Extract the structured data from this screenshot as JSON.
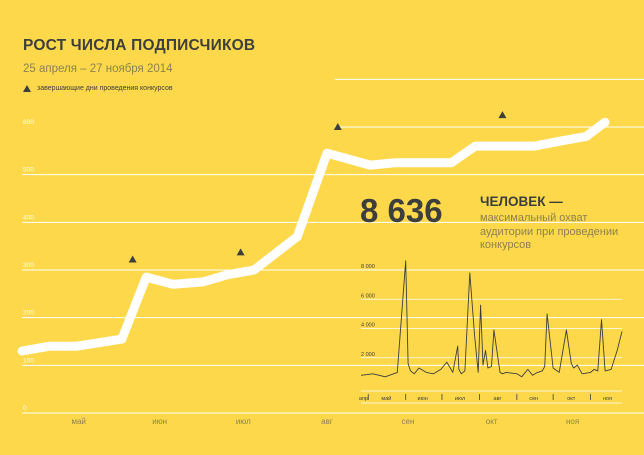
{
  "header": {
    "title": "РОСТ ЧИСЛА ПОДПИСЧИКОВ",
    "subtitle": "25 апреля – 27 ноября 2014",
    "legend_label": "завершающие дни проведения конкурсов"
  },
  "highlight": {
    "value": "8 636",
    "title": "ЧЕЛОВЕК —",
    "description": "максимальный охват аудитории при проведении конкурсов"
  },
  "colors": {
    "background": "#fdd84a",
    "line": "#ffffff",
    "text": "#3d3f3d",
    "muted": "#8a8252"
  },
  "chart_data": [
    {
      "type": "line",
      "title": "РОСТ ЧИСЛА ПОДПИСЧИКОВ",
      "subtitle": "25 апреля – 27 ноября 2014",
      "legend": [
        "завершающие дни проведения конкурсов"
      ],
      "ylim": [
        0,
        700
      ],
      "yticks": [
        "0",
        "100",
        "200",
        "300",
        "400",
        "500",
        "600"
      ],
      "grid": "horizontal",
      "xlabels": [
        "май",
        "июн",
        "июл",
        "авг",
        "сен",
        "окт",
        "ноя"
      ],
      "x": [
        "2014-04-25",
        "2014-05-05",
        "2014-05-15",
        "2014-06-01",
        "2014-06-10",
        "2014-06-20",
        "2014-07-01",
        "2014-07-10",
        "2014-07-20",
        "2014-08-05",
        "2014-08-16",
        "2014-09-01",
        "2014-09-10",
        "2014-09-20",
        "2014-10-01",
        "2014-10-10",
        "2014-10-20",
        "2014-11-01",
        "2014-11-10",
        "2014-11-20",
        "2014-11-27"
      ],
      "values": [
        130,
        140,
        140,
        155,
        285,
        270,
        275,
        290,
        300,
        370,
        545,
        520,
        525,
        525,
        525,
        560,
        560,
        560,
        570,
        580,
        610
      ],
      "markers": [
        {
          "x": "2014-06-05",
          "y": 322
        },
        {
          "x": "2014-07-15",
          "y": 337
        },
        {
          "x": "2014-08-20",
          "y": 600
        },
        {
          "x": "2014-10-20",
          "y": 625
        }
      ]
    },
    {
      "type": "line",
      "ylim": [
        0,
        10000
      ],
      "yticks": [
        "2 000",
        "4 000",
        "6 000",
        "8 000"
      ],
      "xlabels": [
        "апр",
        "май",
        "июн",
        "июл",
        "авг",
        "сен",
        "окт",
        "ноя"
      ],
      "x": [
        "2014-04-25",
        "2014-05-05",
        "2014-05-15",
        "2014-05-25",
        "2014-06-01",
        "2014-06-03",
        "2014-06-05",
        "2014-06-08",
        "2014-06-12",
        "2014-06-18",
        "2014-06-24",
        "2014-06-30",
        "2014-07-05",
        "2014-07-10",
        "2014-07-14",
        "2014-07-15",
        "2014-07-17",
        "2014-07-20",
        "2014-07-24",
        "2014-07-28",
        "2014-07-31",
        "2014-08-02",
        "2014-08-04",
        "2014-08-06",
        "2014-08-08",
        "2014-08-11",
        "2014-08-13",
        "2014-08-18",
        "2014-08-20",
        "2014-08-23",
        "2014-09-01",
        "2014-09-05",
        "2014-09-10",
        "2014-09-14",
        "2014-09-18",
        "2014-09-22",
        "2014-09-24",
        "2014-09-26",
        "2014-10-01",
        "2014-10-06",
        "2014-10-12",
        "2014-10-16",
        "2014-10-18",
        "2014-10-21",
        "2014-10-25",
        "2014-11-01",
        "2014-11-04",
        "2014-11-07",
        "2014-11-10",
        "2014-11-13",
        "2014-11-18",
        "2014-11-23",
        "2014-11-27"
      ],
      "values": [
        800,
        900,
        700,
        1000,
        8636,
        1600,
        1100,
        900,
        1300,
        1000,
        900,
        1200,
        1700,
        1000,
        2800,
        1200,
        900,
        1100,
        7800,
        3500,
        1000,
        5600,
        1500,
        2500,
        1300,
        1400,
        3900,
        1000,
        900,
        1000,
        900,
        700,
        1200,
        800,
        1000,
        1100,
        1400,
        5000,
        1300,
        1000,
        3900,
        1600,
        1300,
        1500,
        900,
        1000,
        1200,
        1100,
        4600,
        1100,
        1200,
        2500,
        3800
      ]
    }
  ]
}
